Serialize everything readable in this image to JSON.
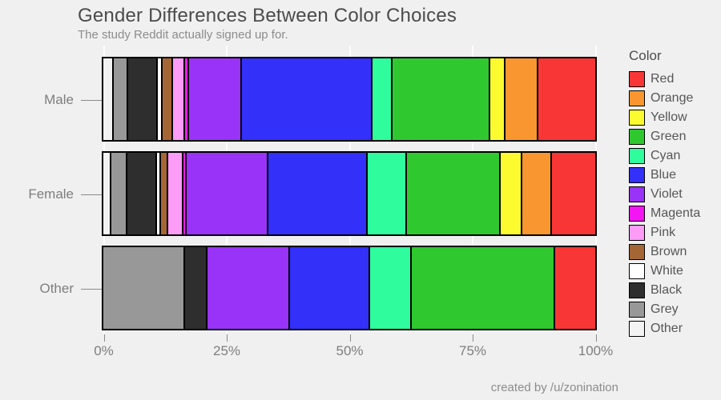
{
  "header": {
    "title": "Gender Differences Between Color Choices",
    "subtitle": "The study Reddit actually signed up for."
  },
  "caption": "created by /u/zonination",
  "legend": {
    "title": "Color",
    "position": "right"
  },
  "chart_data": {
    "type": "bar",
    "orientation": "horizontal",
    "stacked": true,
    "normalized": true,
    "unit": "percent of responses",
    "categories": [
      "Male",
      "Female",
      "Other"
    ],
    "series": [
      {
        "name": "Red",
        "color": "#f93636",
        "values": [
          12.1,
          9.2,
          8.3
        ]
      },
      {
        "name": "Orange",
        "color": "#f9962f",
        "values": [
          6.5,
          5.9,
          0
        ]
      },
      {
        "name": "Yellow",
        "color": "#fbfb30",
        "values": [
          2.9,
          4.2,
          0
        ]
      },
      {
        "name": "Green",
        "color": "#2fc82f",
        "values": [
          20.4,
          19.5,
          29.2
        ]
      },
      {
        "name": "Cyan",
        "color": "#2ffc9d",
        "values": [
          3.8,
          8.0,
          8.3
        ]
      },
      {
        "name": "Blue",
        "color": "#3230f9",
        "values": [
          27.3,
          20.8,
          16.2
        ]
      },
      {
        "name": "Violet",
        "color": "#9933f8",
        "values": [
          11.0,
          17.0,
          16.7
        ]
      },
      {
        "name": "Magenta",
        "color": "#f316f3",
        "values": [
          0.5,
          0.2,
          0
        ]
      },
      {
        "name": "Pink",
        "color": "#fc9cf6",
        "values": [
          2.1,
          3.0,
          0
        ]
      },
      {
        "name": "Brown",
        "color": "#a56636",
        "values": [
          1.9,
          1.2,
          0
        ]
      },
      {
        "name": "White",
        "color": "#ffffff",
        "values": [
          0.7,
          0.4,
          0
        ]
      },
      {
        "name": "Black",
        "color": "#2e2e2e",
        "values": [
          5.9,
          6.0,
          4.2
        ]
      },
      {
        "name": "Grey",
        "color": "#989898",
        "values": [
          2.8,
          3.0,
          16.6
        ]
      },
      {
        "name": "Other",
        "color": "#f3f3f3",
        "values": [
          1.8,
          1.4,
          0
        ]
      }
    ],
    "segment_draw_order": "reverse legend order, left to right",
    "x_ticks": [
      "0%",
      "25%",
      "50%",
      "75%",
      "100%"
    ],
    "x_tick_values": [
      0,
      25,
      50,
      75,
      100
    ],
    "xlim": [
      0,
      100
    ],
    "grid": "vertical major gridlines, white on grey panel"
  }
}
